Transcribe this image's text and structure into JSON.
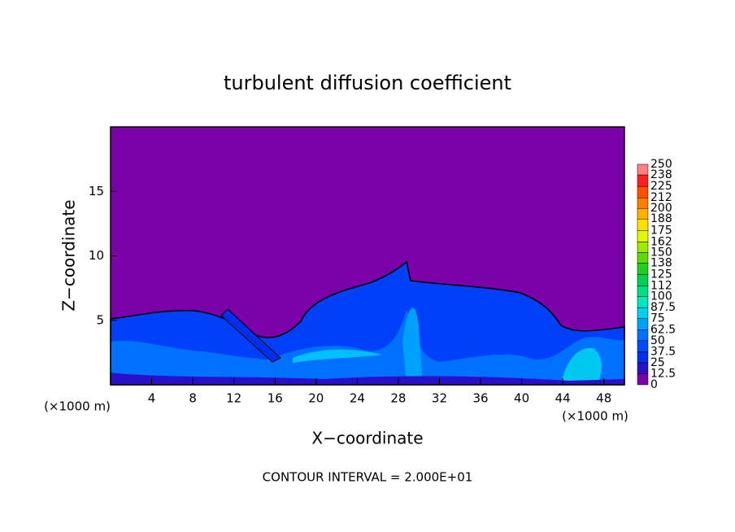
{
  "chart_data": {
    "type": "contour",
    "title": "turbulent diffusion coefficient",
    "x_label": "X−coordinate",
    "y_label": "Z−coordinate",
    "x_unit_label": "(×1000 m)",
    "y_unit_label": "(×1000 m)",
    "footnote": "CONTOUR INTERVAL = 2.000E+01",
    "xlim": [
      0,
      50
    ],
    "ylim": [
      0,
      20
    ],
    "xticks": [
      4,
      8,
      12,
      16,
      20,
      24,
      28,
      32,
      36,
      40,
      44,
      48
    ],
    "yticks": [
      5,
      10,
      15
    ],
    "colorbar": {
      "levels": [
        0,
        12.5,
        25,
        37.5,
        50,
        62.5,
        75,
        87.5,
        100,
        112,
        125,
        138,
        150,
        162,
        175,
        188,
        200,
        212,
        225,
        238,
        250
      ],
      "colors": [
        "#7c00a8",
        "#2c10c8",
        "#0030ee",
        "#0048ff",
        "#0070ff",
        "#00a0ff",
        "#00d0f0",
        "#00e8c0",
        "#00e080",
        "#00d050",
        "#20d020",
        "#60dc00",
        "#a0e800",
        "#e0f800",
        "#ffe000",
        "#ffb000",
        "#ff8000",
        "#ff5000",
        "#ff2020",
        "#ff8080"
      ]
    }
  }
}
